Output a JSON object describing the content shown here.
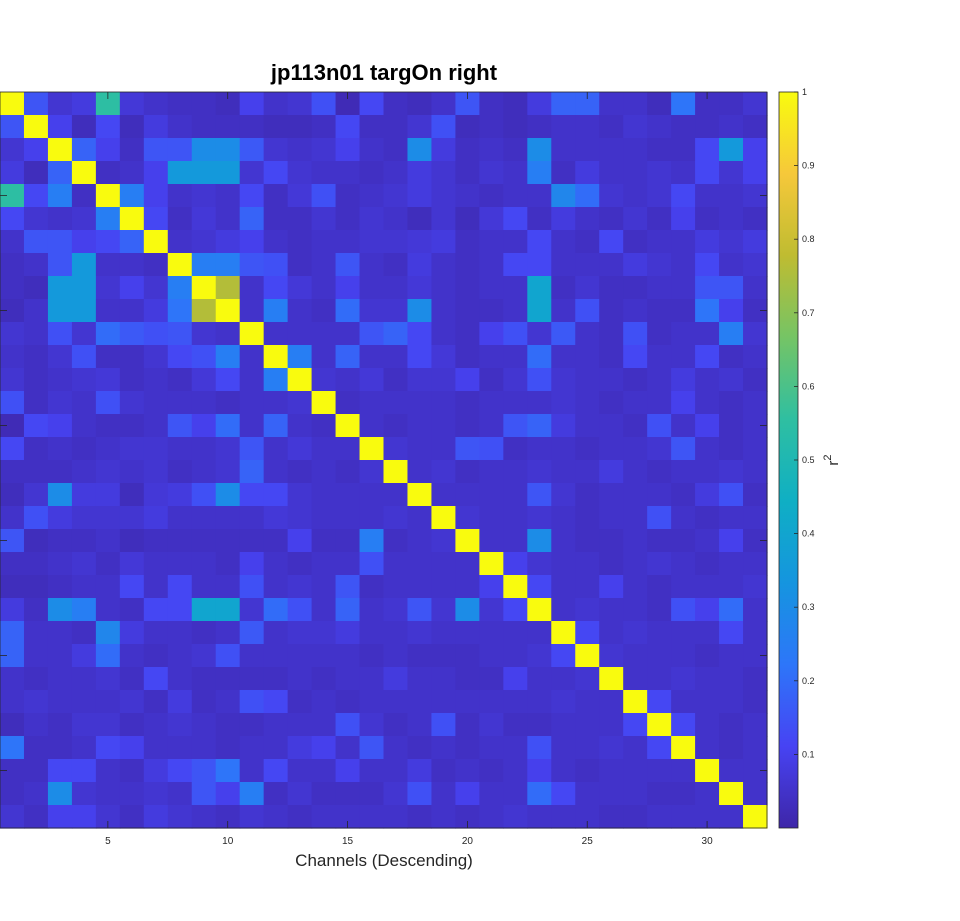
{
  "chart_data": {
    "type": "heatmap",
    "title": "jp113n01 targOn right",
    "xlabel": "Channels (Descending)",
    "ylabel": "",
    "n": 32,
    "x_ticks": [
      5,
      10,
      15,
      20,
      25,
      30
    ],
    "xlim": [
      0.5,
      32.5
    ],
    "ylim": [
      0.5,
      32.5
    ],
    "colorbar": {
      "label": "r",
      "label_superscript": "2",
      "range": [
        0,
        1
      ],
      "ticks": [
        "0.1",
        "0.2",
        "0.3",
        "0.4",
        "0.5",
        "0.6",
        "0.7",
        "0.8",
        "0.9",
        "1"
      ],
      "colormap": "parula"
    },
    "colormap_stops": [
      "#3e26a8",
      "#4743f3",
      "#2d76f9",
      "#1595df",
      "#0fafc4",
      "#2fbfa1",
      "#75c465",
      "#bfbc31",
      "#f6c83a",
      "#f9fb0e"
    ],
    "values": [
      [
        1.0,
        0.15,
        0.06,
        0.08,
        0.55,
        0.07,
        0.05,
        0.04,
        0.04,
        0.03,
        0.1,
        0.05,
        0.06,
        0.14,
        0.02,
        0.12,
        0.04,
        0.03,
        0.05,
        0.15,
        0.04,
        0.03,
        0.08,
        0.18,
        0.18,
        0.05,
        0.05,
        0.03,
        0.22,
        0.04,
        0.04,
        0.06
      ],
      [
        0.15,
        1.0,
        0.1,
        0.03,
        0.12,
        0.03,
        0.08,
        0.05,
        0.04,
        0.04,
        0.04,
        0.03,
        0.03,
        0.04,
        0.12,
        0.04,
        0.04,
        0.06,
        0.14,
        0.03,
        0.04,
        0.03,
        0.04,
        0.05,
        0.05,
        0.04,
        0.06,
        0.05,
        0.04,
        0.04,
        0.05,
        0.04
      ],
      [
        0.06,
        0.1,
        1.0,
        0.18,
        0.1,
        0.04,
        0.15,
        0.15,
        0.3,
        0.3,
        0.16,
        0.06,
        0.05,
        0.06,
        0.1,
        0.05,
        0.04,
        0.3,
        0.08,
        0.04,
        0.05,
        0.04,
        0.3,
        0.05,
        0.05,
        0.05,
        0.05,
        0.04,
        0.04,
        0.12,
        0.35,
        0.1
      ],
      [
        0.08,
        0.03,
        0.18,
        1.0,
        0.04,
        0.05,
        0.1,
        0.35,
        0.35,
        0.35,
        0.06,
        0.12,
        0.06,
        0.05,
        0.05,
        0.04,
        0.05,
        0.08,
        0.06,
        0.04,
        0.06,
        0.05,
        0.25,
        0.04,
        0.08,
        0.05,
        0.05,
        0.06,
        0.05,
        0.12,
        0.06,
        0.1
      ],
      [
        0.55,
        0.12,
        0.25,
        0.04,
        1.0,
        0.25,
        0.1,
        0.05,
        0.06,
        0.05,
        0.12,
        0.04,
        0.07,
        0.14,
        0.04,
        0.05,
        0.06,
        0.08,
        0.06,
        0.05,
        0.04,
        0.05,
        0.05,
        0.28,
        0.2,
        0.06,
        0.05,
        0.06,
        0.12,
        0.05,
        0.05,
        0.06
      ],
      [
        0.12,
        0.06,
        0.05,
        0.06,
        0.25,
        1.0,
        0.12,
        0.04,
        0.07,
        0.05,
        0.18,
        0.04,
        0.04,
        0.06,
        0.04,
        0.06,
        0.05,
        0.03,
        0.06,
        0.03,
        0.07,
        0.12,
        0.04,
        0.08,
        0.05,
        0.04,
        0.06,
        0.04,
        0.1,
        0.04,
        0.05,
        0.04
      ],
      [
        0.05,
        0.15,
        0.15,
        0.1,
        0.12,
        0.18,
        1.0,
        0.05,
        0.06,
        0.08,
        0.1,
        0.05,
        0.04,
        0.05,
        0.05,
        0.06,
        0.06,
        0.07,
        0.08,
        0.04,
        0.05,
        0.05,
        0.12,
        0.05,
        0.04,
        0.12,
        0.04,
        0.05,
        0.05,
        0.08,
        0.06,
        0.08
      ],
      [
        0.04,
        0.05,
        0.15,
        0.35,
        0.05,
        0.05,
        0.04,
        1.0,
        0.25,
        0.25,
        0.15,
        0.14,
        0.04,
        0.05,
        0.15,
        0.05,
        0.04,
        0.08,
        0.05,
        0.04,
        0.05,
        0.12,
        0.12,
        0.05,
        0.05,
        0.05,
        0.08,
        0.06,
        0.05,
        0.12,
        0.05,
        0.06
      ],
      [
        0.04,
        0.03,
        0.35,
        0.35,
        0.06,
        0.1,
        0.06,
        0.25,
        1.0,
        0.76,
        0.05,
        0.12,
        0.07,
        0.05,
        0.1,
        0.05,
        0.05,
        0.07,
        0.05,
        0.04,
        0.05,
        0.05,
        0.4,
        0.04,
        0.06,
        0.04,
        0.04,
        0.05,
        0.05,
        0.15,
        0.15,
        0.05
      ],
      [
        0.03,
        0.05,
        0.35,
        0.35,
        0.05,
        0.05,
        0.08,
        0.22,
        0.76,
        1.0,
        0.05,
        0.25,
        0.05,
        0.04,
        0.2,
        0.06,
        0.06,
        0.3,
        0.05,
        0.04,
        0.04,
        0.05,
        0.4,
        0.05,
        0.14,
        0.04,
        0.05,
        0.04,
        0.04,
        0.22,
        0.1,
        0.04
      ],
      [
        0.06,
        0.05,
        0.14,
        0.06,
        0.2,
        0.16,
        0.14,
        0.15,
        0.06,
        0.05,
        1.0,
        0.05,
        0.05,
        0.05,
        0.05,
        0.15,
        0.18,
        0.12,
        0.05,
        0.04,
        0.1,
        0.14,
        0.06,
        0.16,
        0.05,
        0.04,
        0.14,
        0.04,
        0.05,
        0.05,
        0.25,
        0.06
      ],
      [
        0.05,
        0.04,
        0.06,
        0.14,
        0.04,
        0.04,
        0.06,
        0.12,
        0.14,
        0.25,
        0.05,
        1.0,
        0.25,
        0.05,
        0.18,
        0.05,
        0.05,
        0.12,
        0.07,
        0.04,
        0.05,
        0.05,
        0.2,
        0.05,
        0.05,
        0.04,
        0.12,
        0.05,
        0.05,
        0.12,
        0.04,
        0.05
      ],
      [
        0.06,
        0.04,
        0.05,
        0.06,
        0.07,
        0.04,
        0.05,
        0.04,
        0.07,
        0.12,
        0.05,
        0.25,
        1.0,
        0.06,
        0.05,
        0.07,
        0.04,
        0.06,
        0.06,
        0.1,
        0.04,
        0.06,
        0.14,
        0.06,
        0.05,
        0.05,
        0.04,
        0.05,
        0.08,
        0.05,
        0.06,
        0.04
      ],
      [
        0.14,
        0.04,
        0.06,
        0.05,
        0.14,
        0.06,
        0.05,
        0.05,
        0.05,
        0.04,
        0.05,
        0.05,
        0.06,
        1.0,
        0.04,
        0.05,
        0.05,
        0.05,
        0.05,
        0.04,
        0.05,
        0.05,
        0.05,
        0.06,
        0.05,
        0.04,
        0.05,
        0.05,
        0.1,
        0.05,
        0.04,
        0.05
      ],
      [
        0.02,
        0.12,
        0.1,
        0.05,
        0.04,
        0.04,
        0.05,
        0.15,
        0.1,
        0.2,
        0.05,
        0.18,
        0.05,
        0.04,
        1.0,
        0.05,
        0.04,
        0.05,
        0.05,
        0.04,
        0.05,
        0.15,
        0.18,
        0.08,
        0.05,
        0.05,
        0.04,
        0.14,
        0.05,
        0.1,
        0.04,
        0.05
      ],
      [
        0.12,
        0.04,
        0.05,
        0.04,
        0.05,
        0.06,
        0.06,
        0.05,
        0.05,
        0.06,
        0.15,
        0.05,
        0.07,
        0.05,
        0.05,
        1.0,
        0.06,
        0.05,
        0.05,
        0.15,
        0.14,
        0.04,
        0.05,
        0.05,
        0.04,
        0.05,
        0.05,
        0.06,
        0.15,
        0.05,
        0.04,
        0.05
      ],
      [
        0.04,
        0.04,
        0.04,
        0.05,
        0.06,
        0.05,
        0.06,
        0.04,
        0.05,
        0.06,
        0.18,
        0.05,
        0.04,
        0.05,
        0.04,
        0.06,
        1.0,
        0.05,
        0.06,
        0.04,
        0.05,
        0.05,
        0.06,
        0.05,
        0.05,
        0.08,
        0.05,
        0.04,
        0.05,
        0.05,
        0.06,
        0.05
      ],
      [
        0.03,
        0.06,
        0.3,
        0.08,
        0.08,
        0.03,
        0.07,
        0.08,
        0.14,
        0.3,
        0.12,
        0.12,
        0.06,
        0.05,
        0.05,
        0.05,
        0.05,
        1.0,
        0.05,
        0.05,
        0.05,
        0.05,
        0.15,
        0.06,
        0.04,
        0.05,
        0.05,
        0.05,
        0.04,
        0.08,
        0.14,
        0.04
      ],
      [
        0.05,
        0.14,
        0.08,
        0.06,
        0.06,
        0.06,
        0.08,
        0.05,
        0.05,
        0.05,
        0.05,
        0.07,
        0.06,
        0.05,
        0.05,
        0.05,
        0.06,
        0.05,
        1.0,
        0.06,
        0.05,
        0.05,
        0.06,
        0.05,
        0.04,
        0.05,
        0.05,
        0.14,
        0.05,
        0.04,
        0.05,
        0.05
      ],
      [
        0.15,
        0.03,
        0.04,
        0.04,
        0.05,
        0.03,
        0.04,
        0.04,
        0.04,
        0.04,
        0.04,
        0.04,
        0.1,
        0.04,
        0.04,
        0.25,
        0.04,
        0.05,
        0.06,
        1.0,
        0.05,
        0.05,
        0.3,
        0.05,
        0.04,
        0.04,
        0.05,
        0.04,
        0.04,
        0.05,
        0.1,
        0.04
      ],
      [
        0.04,
        0.04,
        0.05,
        0.06,
        0.04,
        0.07,
        0.05,
        0.05,
        0.05,
        0.04,
        0.1,
        0.05,
        0.04,
        0.05,
        0.05,
        0.14,
        0.05,
        0.05,
        0.05,
        0.05,
        1.0,
        0.1,
        0.06,
        0.05,
        0.05,
        0.04,
        0.05,
        0.06,
        0.05,
        0.04,
        0.05,
        0.05
      ],
      [
        0.03,
        0.03,
        0.04,
        0.05,
        0.05,
        0.12,
        0.05,
        0.12,
        0.05,
        0.05,
        0.14,
        0.05,
        0.06,
        0.05,
        0.15,
        0.04,
        0.05,
        0.05,
        0.05,
        0.05,
        0.1,
        1.0,
        0.12,
        0.05,
        0.05,
        0.1,
        0.05,
        0.04,
        0.05,
        0.05,
        0.05,
        0.06
      ],
      [
        0.08,
        0.04,
        0.3,
        0.25,
        0.05,
        0.04,
        0.12,
        0.12,
        0.4,
        0.4,
        0.06,
        0.2,
        0.14,
        0.05,
        0.18,
        0.05,
        0.06,
        0.15,
        0.06,
        0.3,
        0.06,
        0.12,
        1.0,
        0.05,
        0.06,
        0.05,
        0.05,
        0.04,
        0.14,
        0.1,
        0.2,
        0.05
      ],
      [
        0.18,
        0.05,
        0.05,
        0.04,
        0.28,
        0.08,
        0.05,
        0.05,
        0.04,
        0.05,
        0.16,
        0.05,
        0.06,
        0.06,
        0.08,
        0.05,
        0.05,
        0.06,
        0.05,
        0.05,
        0.05,
        0.05,
        0.05,
        1.0,
        0.12,
        0.05,
        0.06,
        0.05,
        0.05,
        0.05,
        0.12,
        0.05
      ],
      [
        0.18,
        0.05,
        0.05,
        0.08,
        0.2,
        0.05,
        0.04,
        0.05,
        0.06,
        0.14,
        0.05,
        0.05,
        0.05,
        0.05,
        0.05,
        0.04,
        0.05,
        0.04,
        0.04,
        0.04,
        0.05,
        0.05,
        0.06,
        0.12,
        1.0,
        0.06,
        0.05,
        0.05,
        0.05,
        0.04,
        0.05,
        0.05
      ],
      [
        0.05,
        0.04,
        0.05,
        0.05,
        0.06,
        0.04,
        0.12,
        0.05,
        0.04,
        0.04,
        0.04,
        0.04,
        0.05,
        0.04,
        0.05,
        0.05,
        0.08,
        0.05,
        0.05,
        0.04,
        0.04,
        0.1,
        0.05,
        0.05,
        0.06,
        1.0,
        0.05,
        0.05,
        0.06,
        0.05,
        0.05,
        0.04
      ],
      [
        0.05,
        0.06,
        0.05,
        0.05,
        0.05,
        0.06,
        0.04,
        0.08,
        0.04,
        0.05,
        0.14,
        0.12,
        0.04,
        0.05,
        0.04,
        0.05,
        0.05,
        0.05,
        0.05,
        0.05,
        0.05,
        0.05,
        0.05,
        0.06,
        0.05,
        0.05,
        1.0,
        0.12,
        0.05,
        0.05,
        0.05,
        0.04
      ],
      [
        0.03,
        0.05,
        0.04,
        0.06,
        0.06,
        0.04,
        0.05,
        0.06,
        0.05,
        0.04,
        0.04,
        0.05,
        0.05,
        0.05,
        0.14,
        0.06,
        0.04,
        0.05,
        0.14,
        0.04,
        0.06,
        0.04,
        0.04,
        0.05,
        0.05,
        0.05,
        0.12,
        1.0,
        0.12,
        0.05,
        0.04,
        0.05
      ],
      [
        0.22,
        0.04,
        0.04,
        0.05,
        0.12,
        0.1,
        0.05,
        0.05,
        0.05,
        0.04,
        0.05,
        0.05,
        0.08,
        0.1,
        0.05,
        0.15,
        0.05,
        0.04,
        0.05,
        0.04,
        0.05,
        0.05,
        0.14,
        0.05,
        0.05,
        0.06,
        0.05,
        0.12,
        1.0,
        0.05,
        0.04,
        0.05
      ],
      [
        0.04,
        0.04,
        0.12,
        0.12,
        0.05,
        0.04,
        0.08,
        0.12,
        0.15,
        0.22,
        0.05,
        0.12,
        0.05,
        0.05,
        0.1,
        0.05,
        0.05,
        0.08,
        0.04,
        0.05,
        0.04,
        0.05,
        0.1,
        0.05,
        0.04,
        0.05,
        0.05,
        0.05,
        0.05,
        1.0,
        0.05,
        0.05
      ],
      [
        0.04,
        0.05,
        0.3,
        0.06,
        0.05,
        0.05,
        0.06,
        0.05,
        0.15,
        0.1,
        0.25,
        0.04,
        0.06,
        0.04,
        0.04,
        0.04,
        0.06,
        0.14,
        0.05,
        0.1,
        0.05,
        0.05,
        0.2,
        0.12,
        0.05,
        0.05,
        0.05,
        0.04,
        0.04,
        0.05,
        1.0,
        0.05
      ],
      [
        0.06,
        0.04,
        0.1,
        0.1,
        0.06,
        0.04,
        0.08,
        0.06,
        0.05,
        0.04,
        0.06,
        0.05,
        0.04,
        0.05,
        0.05,
        0.05,
        0.05,
        0.04,
        0.05,
        0.04,
        0.05,
        0.06,
        0.05,
        0.05,
        0.05,
        0.04,
        0.04,
        0.05,
        0.05,
        0.05,
        0.05,
        1.0
      ]
    ]
  }
}
